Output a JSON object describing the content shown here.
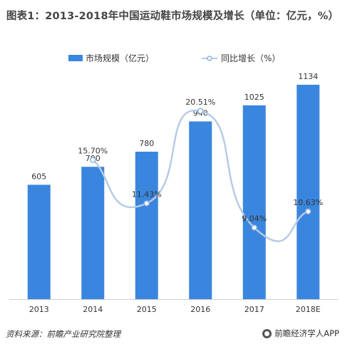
{
  "title": "图表1：2013-2018年中国运动鞋市场规模及增长（单位：亿元，%）",
  "legend": {
    "bar": "市场规模（亿元）",
    "line": "同比增长（%）"
  },
  "footer": {
    "source": "资料来源：前瞻产业研究院整理",
    "brand": "前瞻经济学人APP"
  },
  "colors": {
    "bar": "#3a86de",
    "line": "#b7cbe6",
    "marker_fill": "#ffffff",
    "marker_stroke": "#8fb0dc"
  },
  "chart_data": {
    "type": "bar",
    "categories": [
      "2013",
      "2014",
      "2015",
      "2016",
      "2017",
      "2018E"
    ],
    "series": [
      {
        "name": "市场规模（亿元）",
        "type": "bar",
        "values": [
          605,
          700,
          780,
          940,
          1025,
          1134
        ],
        "labels": [
          "605",
          "700",
          "780",
          "940",
          "1025",
          "1134"
        ]
      },
      {
        "name": "同比增长（%）",
        "type": "line",
        "smooth": true,
        "values": [
          null,
          15.7,
          11.43,
          20.51,
          9.04,
          10.63
        ],
        "labels": [
          "",
          "15.70%",
          "11.43%",
          "20.51%",
          "9.04%",
          "10.63%"
        ]
      }
    ],
    "title": "图表1：2013-2018年中国运动鞋市场规模及增长（单位：亿元，%）",
    "xlabel": "",
    "ylabel": "",
    "grid": false,
    "legend_position": "top"
  }
}
